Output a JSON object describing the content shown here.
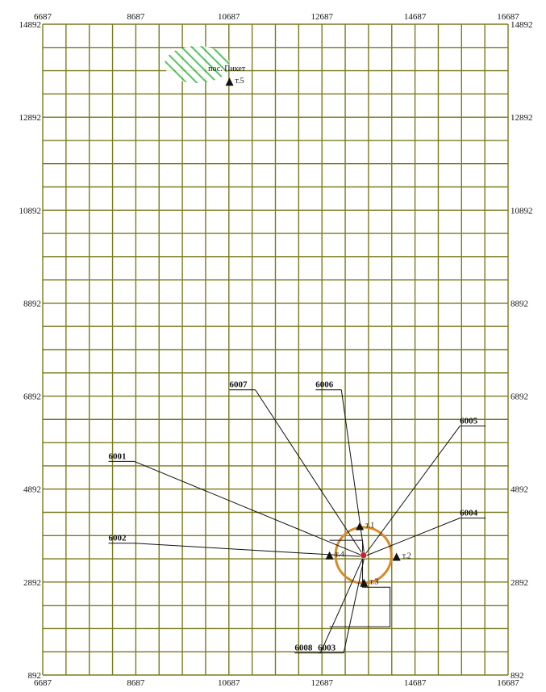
{
  "map": {
    "x_range": [
      6687,
      16687
    ],
    "y_range": [
      892,
      14892
    ],
    "grid_step": 500,
    "grid_color": "#7a7a1e",
    "x_ticks": [
      "6687",
      "8687",
      "10687",
      "12687",
      "14687",
      "16687"
    ],
    "y_ticks": [
      "14892",
      "12892",
      "10892",
      "8892",
      "6892",
      "4892",
      "2892",
      "892"
    ],
    "settlement": {
      "label": "пос. Пикет",
      "hatch_color": "#3cb84a",
      "x": 10000,
      "y": 14025,
      "rx": 700,
      "ry": 400
    },
    "sanitary_zone": {
      "color": "#d88a2a",
      "x": 13580,
      "y": 3470,
      "r": 600
    },
    "center_marker": {
      "color": "#cc2222",
      "x": 13580,
      "y": 3470
    },
    "sources": [
      {
        "label": "6001",
        "label_x": 8100,
        "label_y": 5540,
        "anchor_x": 13560,
        "anchor_y": 3460
      },
      {
        "label": "6002",
        "label_x": 8100,
        "label_y": 3780,
        "anchor_x": 13560,
        "anchor_y": 3440
      },
      {
        "label": "6007",
        "label_x": 10700,
        "label_y": 7080,
        "anchor_x": 13570,
        "anchor_y": 3480
      },
      {
        "label": "6006",
        "label_x": 12550,
        "label_y": 7080,
        "anchor_x": 13600,
        "anchor_y": 3470
      },
      {
        "label": "6005",
        "label_x": 15650,
        "label_y": 6300,
        "anchor_x": 13610,
        "anchor_y": 3480
      },
      {
        "label": "6004",
        "label_x": 15650,
        "label_y": 4320,
        "anchor_x": 13610,
        "anchor_y": 3450
      },
      {
        "label": "6008",
        "label_x": 12100,
        "label_y": 1420,
        "anchor_x": 13580,
        "anchor_y": 3440
      },
      {
        "label": "6003",
        "label_x": 12600,
        "label_y": 1420,
        "anchor_x": 13600,
        "anchor_y": 3440
      }
    ],
    "points": [
      {
        "label": "т.1",
        "x": 13500,
        "y": 4080,
        "label_side": "right"
      },
      {
        "label": "т.2",
        "x": 14290,
        "y": 3420,
        "label_side": "right"
      },
      {
        "label": "т.3",
        "x": 13590,
        "y": 2860,
        "label_side": "right"
      },
      {
        "label": "т.4",
        "x": 12850,
        "y": 3450,
        "label_side": "right"
      },
      {
        "label": "т.5",
        "x": 10700,
        "y": 13640,
        "label_side": "right"
      }
    ],
    "site_outline": [
      [
        12850,
        3790
      ],
      [
        13560,
        3790
      ],
      [
        13560,
        2780
      ],
      [
        14150,
        2780
      ],
      [
        14150,
        1930
      ],
      [
        12850,
        1930
      ]
    ]
  }
}
